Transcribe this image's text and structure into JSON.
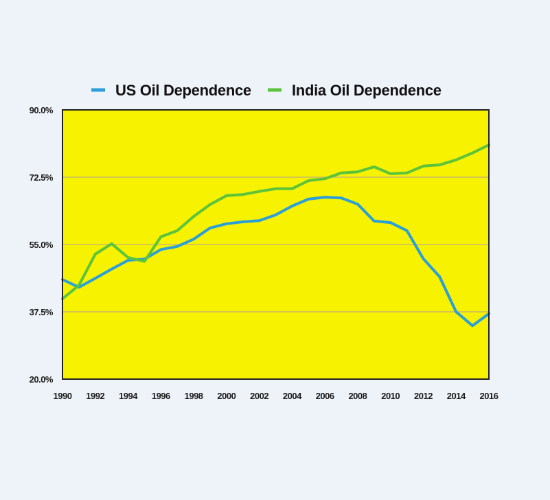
{
  "chart_data": {
    "type": "line",
    "title": "",
    "xlabel": "",
    "ylabel": "",
    "x": [
      1990,
      1991,
      1992,
      1993,
      1994,
      1995,
      1996,
      1997,
      1998,
      1999,
      2000,
      2001,
      2002,
      2003,
      2004,
      2005,
      2006,
      2007,
      2008,
      2009,
      2010,
      2011,
      2012,
      2013,
      2014,
      2015,
      2016
    ],
    "xlim": [
      1990,
      2016
    ],
    "ylim": [
      20.0,
      90.0
    ],
    "x_ticks": [
      "1990",
      "1992",
      "1994",
      "1996",
      "1998",
      "2000",
      "2002",
      "2004",
      "2006",
      "2008",
      "2010",
      "2012",
      "2014",
      "2016"
    ],
    "x_tick_values": [
      1990,
      1992,
      1994,
      1996,
      1998,
      2000,
      2002,
      2004,
      2006,
      2008,
      2010,
      2012,
      2014,
      2016
    ],
    "y_ticks": [
      "20.0%",
      "37.5%",
      "55.0%",
      "72.5%",
      "90.0%"
    ],
    "y_tick_values": [
      20.0,
      37.5,
      55.0,
      72.5,
      90.0
    ],
    "grid": "horizontal",
    "legend_position": "top",
    "plot_background": "#f7f200",
    "series": [
      {
        "name": "US Oil Dependence",
        "color": "#2a9fd8",
        "values": [
          45.9,
          43.9,
          46.2,
          48.6,
          50.9,
          51.2,
          53.7,
          54.5,
          56.4,
          59.3,
          60.4,
          60.9,
          61.2,
          62.7,
          65.0,
          66.8,
          67.3,
          67.1,
          65.5,
          61.1,
          60.7,
          58.6,
          51.3,
          46.6,
          37.5,
          33.9,
          37.0
        ]
      },
      {
        "name": "India Oil Dependence",
        "color": "#5cc43a",
        "values": [
          40.9,
          44.4,
          52.5,
          55.2,
          51.6,
          50.6,
          57.0,
          58.6,
          62.3,
          65.4,
          67.7,
          68.0,
          68.8,
          69.5,
          69.5,
          71.6,
          72.1,
          73.6,
          73.9,
          75.2,
          73.4,
          73.6,
          75.4,
          75.7,
          77.0,
          78.8,
          80.9
        ]
      }
    ]
  }
}
